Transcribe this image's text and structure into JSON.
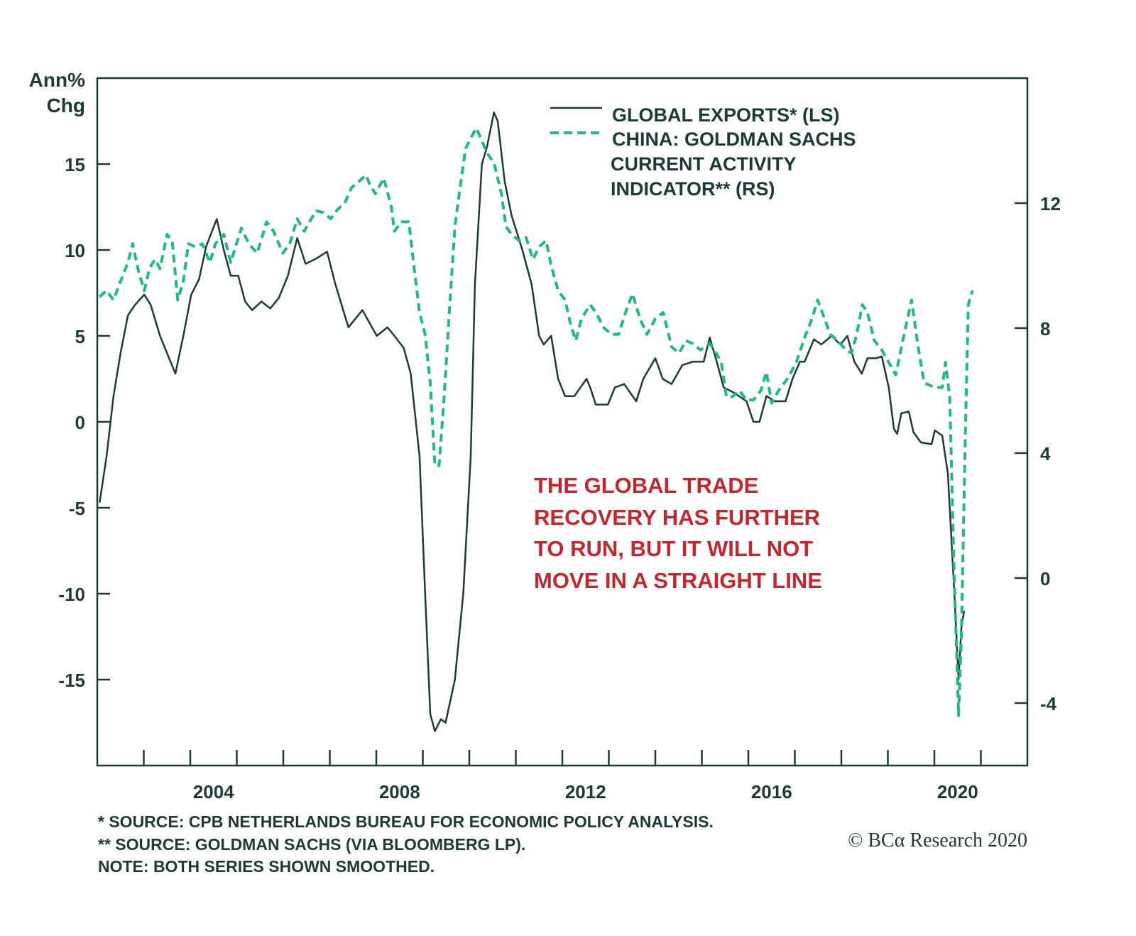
{
  "chart_data": {
    "type": "line",
    "left_axis": {
      "label": [
        "Ann%",
        "Chg"
      ],
      "ylim": [
        -20,
        20
      ],
      "ticks": [
        15,
        10,
        5,
        0,
        -5,
        -10,
        -15
      ]
    },
    "right_axis": {
      "ylim": [
        -6,
        16
      ],
      "ticks": [
        12,
        8,
        4,
        0,
        -4
      ]
    },
    "x_axis": {
      "xlim": [
        2002,
        2022
      ],
      "tick_years": [
        2003,
        2004,
        2005,
        2006,
        2007,
        2008,
        2009,
        2010,
        2011,
        2012,
        2013,
        2014,
        2015,
        2016,
        2017,
        2018,
        2019,
        2020,
        2021
      ],
      "labels": [
        "2004",
        "2008",
        "2012",
        "2016",
        "2020"
      ]
    },
    "legend": {
      "placement": "top-center",
      "entries": [
        "GLOBAL EXPORTS* (LS)",
        "CHINA: GOLDMAN SACHS",
        "CURRENT ACTIVITY",
        "INDICATOR** (RS)"
      ]
    },
    "annotation": [
      "THE GLOBAL TRADE",
      "RECOVERY HAS FURTHER",
      "TO RUN, BUT IT WILL NOT",
      "MOVE IN A STRAIGHT LINE"
    ],
    "footnotes": [
      "* SOURCE: CPB NETHERLANDS BUREAU FOR ECONOMIC POLICY ANALYSIS.",
      "** SOURCE: GOLDMAN SACHS (VIA BLOOMBERG LP).",
      "NOTE: BOTH SERIES SHOWN SMOOTHED."
    ],
    "copyright": "© BCα Research 2020",
    "colors": {
      "axis": "#1d3b36",
      "exports": "#1d3b36",
      "china": "#1fb886",
      "annotation": "#c1272d"
    },
    "series": [
      {
        "name": "GLOBAL EXPORTS (LS)",
        "axis": "left",
        "style": "solid",
        "x": [
          2002.05,
          2002.2,
          2002.35,
          2002.5,
          2002.66,
          2002.81,
          2003.01,
          2003.15,
          2003.35,
          2003.53,
          2003.68,
          2003.85,
          2004.02,
          2004.19,
          2004.34,
          2004.57,
          2004.72,
          2004.87,
          2005.03,
          2005.18,
          2005.33,
          2005.53,
          2005.72,
          2005.9,
          2006.1,
          2006.3,
          2006.48,
          2006.71,
          2006.94,
          2007.12,
          2007.4,
          2007.7,
          2008.01,
          2008.24,
          2008.39,
          2008.59,
          2008.74,
          2008.93,
          2009.05,
          2009.16,
          2009.26,
          2009.39,
          2009.49,
          2009.69,
          2009.87,
          2010.03,
          2010.12,
          2010.27,
          2010.38,
          2010.53,
          2010.61,
          2010.76,
          2010.91,
          2011.14,
          2011.34,
          2011.5,
          2011.6,
          2011.76,
          2011.91,
          2012.06,
          2012.26,
          2012.52,
          2012.6,
          2012.72,
          2012.98,
          2013.13,
          2013.33,
          2013.59,
          2013.74,
          2014.0,
          2014.16,
          2014.35,
          2014.58,
          2014.81,
          2015.04,
          2015.17,
          2015.32,
          2015.47,
          2015.69,
          2015.96,
          2016.11,
          2016.24,
          2016.39,
          2016.57,
          2016.8,
          2016.95,
          2017.11,
          2017.21,
          2017.41,
          2017.57,
          2017.79,
          2017.98,
          2018.13,
          2018.28,
          2018.44,
          2018.56,
          2018.74,
          2018.87,
          2019.02,
          2019.13,
          2019.2,
          2019.29,
          2019.45,
          2019.55,
          2019.71,
          2019.94,
          2020.01,
          2020.17,
          2020.29,
          2020.43,
          2020.52,
          2020.58,
          2020.64
        ],
        "y": [
          -4.7,
          -2,
          1.5,
          4,
          6.2,
          6.8,
          7.4,
          6.8,
          5,
          3.8,
          2.8,
          5,
          7.4,
          8.3,
          10.2,
          11.8,
          10,
          8.5,
          8.5,
          7,
          6.5,
          7,
          6.6,
          7.2,
          8.5,
          10.7,
          9.2,
          9.5,
          9.9,
          8,
          5.5,
          6.5,
          5,
          5.5,
          5,
          4.3,
          2.8,
          -2,
          -10,
          -17,
          -18,
          -17.3,
          -17.5,
          -15,
          -10,
          -2,
          8,
          15,
          16,
          18,
          17.5,
          14,
          12,
          10,
          8,
          5,
          4.5,
          5,
          2.5,
          1.5,
          1.5,
          2.5,
          2,
          1,
          1,
          2,
          2.2,
          1.2,
          2.5,
          3.7,
          2.5,
          2.2,
          3.3,
          3.5,
          3.5,
          4.9,
          3.5,
          2,
          1.7,
          1.2,
          0,
          0,
          1.5,
          1.2,
          1.2,
          2.5,
          3.5,
          3.5,
          4.8,
          4.5,
          5,
          4.5,
          5,
          3.5,
          2.8,
          3.7,
          3.7,
          3.8,
          2,
          -0.4,
          -0.7,
          0.5,
          0.6,
          -0.6,
          -1.2,
          -1.3,
          -0.5,
          -0.8,
          -3,
          -10,
          -15,
          -12,
          -11
        ]
      },
      {
        "name": "CHINA: GOLDMAN SACHS CURRENT ACTIVITY INDICATOR (RS)",
        "axis": "right",
        "style": "dashed",
        "x": [
          2002.05,
          2002.2,
          2002.35,
          2002.5,
          2002.66,
          2002.76,
          2002.89,
          2003.01,
          2003.12,
          2003.24,
          2003.35,
          2003.5,
          2003.61,
          2003.73,
          2003.85,
          2003.96,
          2004.11,
          2004.26,
          2004.42,
          2004.54,
          2004.72,
          2004.87,
          2005.1,
          2005.26,
          2005.44,
          2005.64,
          2005.79,
          2005.99,
          2006.14,
          2006.3,
          2006.45,
          2006.56,
          2006.71,
          2006.86,
          2007.02,
          2007.17,
          2007.32,
          2007.47,
          2007.63,
          2007.78,
          2007.86,
          2007.98,
          2008.09,
          2008.16,
          2008.32,
          2008.39,
          2008.54,
          2008.7,
          2008.8,
          2008.93,
          2009.05,
          2009.16,
          2009.26,
          2009.35,
          2009.46,
          2009.57,
          2009.69,
          2009.81,
          2009.92,
          2010.04,
          2010.15,
          2010.27,
          2010.38,
          2010.53,
          2010.69,
          2010.79,
          2010.91,
          2011.07,
          2011.22,
          2011.37,
          2011.5,
          2011.65,
          2011.76,
          2011.91,
          2012.06,
          2012.18,
          2012.29,
          2012.41,
          2012.6,
          2012.72,
          2012.9,
          2013.06,
          2013.21,
          2013.36,
          2013.51,
          2013.67,
          2013.82,
          2014.0,
          2014.17,
          2014.35,
          2014.51,
          2014.66,
          2014.81,
          2014.97,
          2015.17,
          2015.27,
          2015.42,
          2015.53,
          2015.65,
          2015.81,
          2015.96,
          2016.11,
          2016.27,
          2016.39,
          2016.5,
          2016.65,
          2016.85,
          2017.03,
          2017.21,
          2017.37,
          2017.49,
          2017.64,
          2017.76,
          2017.92,
          2018.1,
          2018.22,
          2018.33,
          2018.45,
          2018.56,
          2018.71,
          2018.87,
          2019.02,
          2019.17,
          2019.32,
          2019.51,
          2019.63,
          2019.78,
          2020.01,
          2020.17,
          2020.24,
          2020.33,
          2020.43,
          2020.52,
          2020.58,
          2020.67,
          2020.73,
          2020.82
        ],
        "y": [
          9.0,
          9.2,
          8.9,
          9.5,
          10.1,
          10.7,
          9.8,
          9.2,
          9.9,
          10.2,
          9.9,
          11,
          10.8,
          8.9,
          9.5,
          10.7,
          10.6,
          10.7,
          10.1,
          10.7,
          11,
          10.1,
          11.2,
          10.7,
          10.4,
          11.4,
          11.1,
          10.4,
          10.7,
          11.5,
          11.1,
          11.4,
          11.75,
          11.7,
          11.5,
          11.8,
          12,
          12.5,
          12.7,
          12.9,
          12.6,
          12.3,
          12.6,
          12.8,
          11.9,
          11.1,
          11.4,
          11.4,
          10.1,
          8.5,
          7.8,
          6.25,
          3.6,
          3.6,
          5.8,
          8.5,
          11.25,
          12.6,
          13.75,
          14.1,
          14.4,
          14,
          13.6,
          13.3,
          12.3,
          11.25,
          11,
          10.8,
          10.9,
          10.2,
          10.6,
          10.8,
          10,
          9.2,
          8.9,
          8.1,
          7.6,
          8.3,
          8.75,
          8.5,
          8,
          7.8,
          7.8,
          8.5,
          9.1,
          8.3,
          7.8,
          8.3,
          8.5,
          7.4,
          7.2,
          7.6,
          7.5,
          7.3,
          7.5,
          7.3,
          6.9,
          5.8,
          5.8,
          6,
          5.7,
          5.7,
          6,
          6.6,
          5.6,
          6,
          6.4,
          6.9,
          7.7,
          8.3,
          8.9,
          8.3,
          7.8,
          7.6,
          7.3,
          7.2,
          7.8,
          8.75,
          8.5,
          7.6,
          7.3,
          6.9,
          6.5,
          7.6,
          8.9,
          7.6,
          6.25,
          6.1,
          6.1,
          6.9,
          5.8,
          -0.1,
          -4.4,
          -1.9,
          4.9,
          8.75,
          9.2
        ]
      }
    ]
  }
}
